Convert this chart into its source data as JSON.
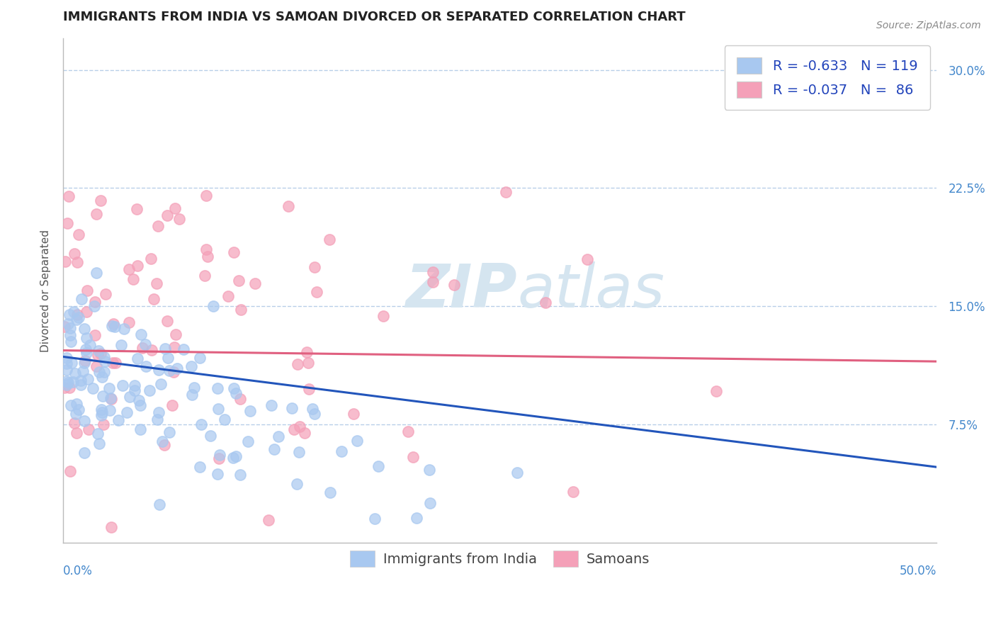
{
  "title": "IMMIGRANTS FROM INDIA VS SAMOAN DIVORCED OR SEPARATED CORRELATION CHART",
  "source": "Source: ZipAtlas.com",
  "ylabel": "Divorced or Separated",
  "x_min": 0.0,
  "x_max": 0.5,
  "y_min": 0.0,
  "y_max": 0.32,
  "y_ticks": [
    0.075,
    0.15,
    0.225,
    0.3
  ],
  "y_tick_labels": [
    "7.5%",
    "15.0%",
    "22.5%",
    "30.0%"
  ],
  "legend_R_india": "-0.633",
  "legend_N_india": "119",
  "legend_R_samoan": "-0.037",
  "legend_N_samoan": " 86",
  "india_color": "#a8c8f0",
  "samoan_color": "#f4a0b8",
  "india_line_color": "#2255bb",
  "samoan_line_color": "#e06080",
  "background_color": "#ffffff",
  "grid_color": "#b8cfe8",
  "watermark_color": "#d5e5f0",
  "title_fontsize": 13,
  "axis_label_fontsize": 11,
  "tick_fontsize": 12,
  "legend_fontsize": 14
}
